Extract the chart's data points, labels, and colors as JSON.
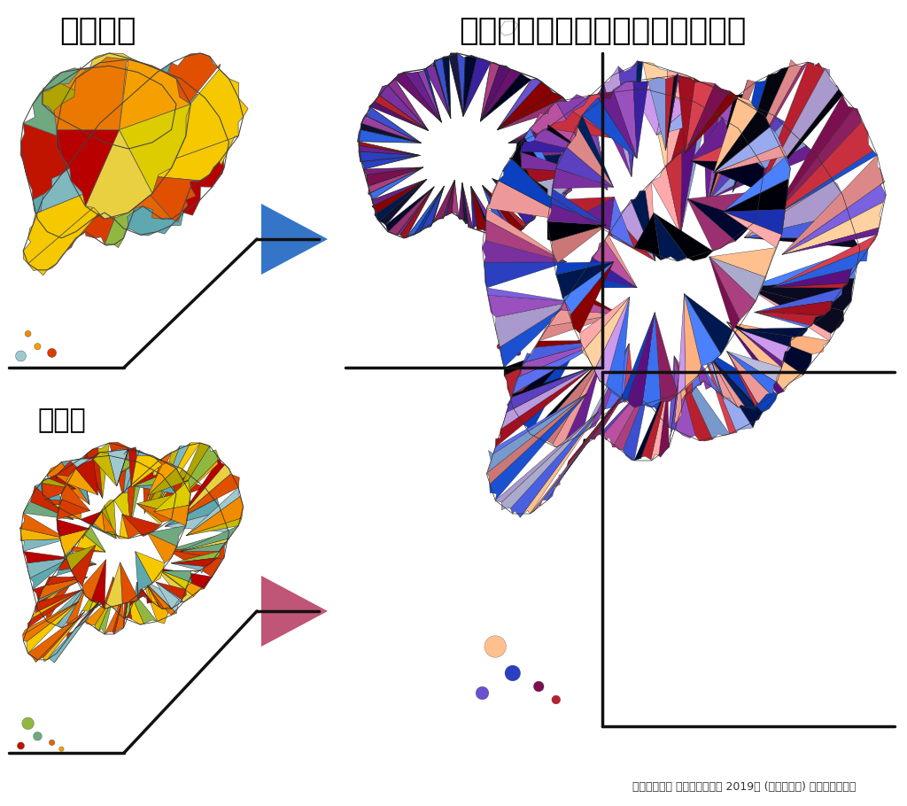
{
  "title_left": "都道府県",
  "title_right": "都道府県と市町村の２変量マップ",
  "label_bottom_left": "市町村",
  "caption": "国土数値情報 行政区域データ 2019年 (国土交通省) を加工して作成",
  "bg_color": "#ffffff",
  "arrow_blue": "#3575C8",
  "arrow_pink": "#BF5577",
  "title_fontsize": 26,
  "label_fontsize": 22,
  "caption_fontsize": 9,
  "line_color": "#111111",
  "line_width": 2.5
}
